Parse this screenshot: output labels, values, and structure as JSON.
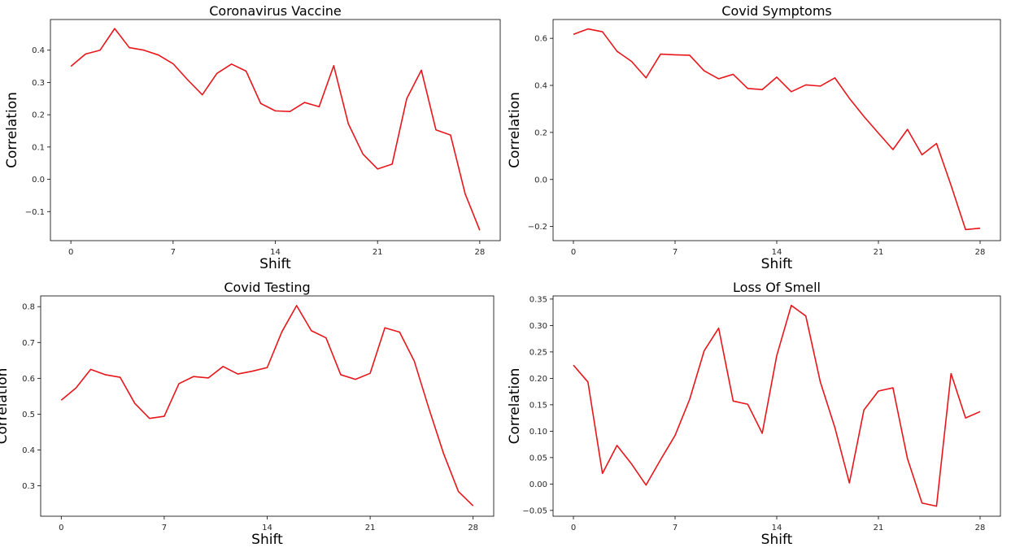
{
  "chart_data": [
    {
      "type": "line",
      "title": "Coronavirus Vaccine",
      "xlabel": "Shift",
      "ylabel": "Correlation",
      "xlim": [
        -1.4,
        29.4
      ],
      "ylim": [
        -0.19,
        0.495
      ],
      "xticks": [
        0,
        7,
        14,
        21,
        28
      ],
      "yticks": [
        -0.1,
        0.0,
        0.1,
        0.2,
        0.3,
        0.4
      ],
      "ytick_labels": [
        "−0.1",
        "0.0",
        "0.1",
        "0.2",
        "0.3",
        "0.4"
      ],
      "grid": false,
      "color": "#e8161b",
      "x": [
        0,
        1,
        2,
        3,
        4,
        5,
        6,
        7,
        8,
        9,
        10,
        11,
        12,
        13,
        14,
        15,
        16,
        17,
        18,
        19,
        20,
        21,
        22,
        23,
        24,
        25,
        26,
        27,
        28
      ],
      "values": [
        0.35,
        0.388,
        0.4,
        0.467,
        0.408,
        0.4,
        0.385,
        0.358,
        0.308,
        0.262,
        0.328,
        0.357,
        0.335,
        0.235,
        0.212,
        0.21,
        0.238,
        0.225,
        0.352,
        0.172,
        0.078,
        0.032,
        0.047,
        0.25,
        0.338,
        0.153,
        0.137,
        -0.045,
        -0.158
      ]
    },
    {
      "type": "line",
      "title": "Covid Symptoms",
      "xlabel": "Shift",
      "ylabel": "Correlation",
      "xlim": [
        -1.4,
        29.4
      ],
      "ylim": [
        -0.26,
        0.68
      ],
      "xticks": [
        0,
        7,
        14,
        21,
        28
      ],
      "yticks": [
        -0.2,
        0.0,
        0.2,
        0.4,
        0.6
      ],
      "ytick_labels": [
        "−0.2",
        "0.0",
        "0.2",
        "0.4",
        "0.6"
      ],
      "grid": false,
      "color": "#e8161b",
      "x": [
        0,
        1,
        2,
        3,
        4,
        5,
        6,
        7,
        8,
        9,
        10,
        11,
        12,
        13,
        14,
        15,
        16,
        17,
        18,
        19,
        20,
        21,
        22,
        23,
        24,
        25,
        26,
        27,
        28
      ],
      "values": [
        0.617,
        0.64,
        0.628,
        0.545,
        0.502,
        0.432,
        0.533,
        0.53,
        0.528,
        0.462,
        0.428,
        0.447,
        0.387,
        0.382,
        0.435,
        0.373,
        0.402,
        0.397,
        0.432,
        0.345,
        0.268,
        0.197,
        0.127,
        0.213,
        0.105,
        0.153,
        -0.025,
        -0.213,
        -0.207
      ]
    },
    {
      "type": "line",
      "title": "Covid Testing",
      "xlabel": "Shift",
      "ylabel": "Correlation",
      "xlim": [
        -1.4,
        29.4
      ],
      "ylim": [
        0.215,
        0.83
      ],
      "xticks": [
        0,
        7,
        14,
        21,
        28
      ],
      "yticks": [
        0.3,
        0.4,
        0.5,
        0.6,
        0.7,
        0.8
      ],
      "ytick_labels": [
        "0.3",
        "0.4",
        "0.5",
        "0.6",
        "0.7",
        "0.8"
      ],
      "grid": false,
      "color": "#e8161b",
      "x": [
        0,
        1,
        2,
        3,
        4,
        5,
        6,
        7,
        8,
        9,
        10,
        11,
        12,
        13,
        14,
        15,
        16,
        17,
        18,
        19,
        20,
        21,
        22,
        23,
        24,
        25,
        26,
        27,
        28
      ],
      "values": [
        0.539,
        0.573,
        0.625,
        0.61,
        0.603,
        0.53,
        0.488,
        0.494,
        0.585,
        0.605,
        0.601,
        0.633,
        0.612,
        0.62,
        0.63,
        0.73,
        0.803,
        0.733,
        0.713,
        0.61,
        0.597,
        0.614,
        0.741,
        0.729,
        0.648,
        0.515,
        0.389,
        0.284,
        0.244
      ]
    },
    {
      "type": "line",
      "title": "Loss Of Smell",
      "xlabel": "Shift",
      "ylabel": "Correlation",
      "xlim": [
        -1.4,
        29.4
      ],
      "ylim": [
        -0.061,
        0.356
      ],
      "xticks": [
        0,
        7,
        14,
        21,
        28
      ],
      "yticks": [
        -0.05,
        0.0,
        0.05,
        0.1,
        0.15,
        0.2,
        0.25,
        0.3,
        0.35
      ],
      "ytick_labels": [
        "−0.05",
        "0.00",
        "0.05",
        "0.10",
        "0.15",
        "0.20",
        "0.25",
        "0.30",
        "0.35"
      ],
      "grid": false,
      "color": "#e8161b",
      "x": [
        0,
        1,
        2,
        3,
        4,
        5,
        6,
        7,
        8,
        9,
        10,
        11,
        12,
        13,
        14,
        15,
        16,
        17,
        18,
        19,
        20,
        21,
        22,
        23,
        24,
        25,
        26,
        27,
        28
      ],
      "values": [
        0.225,
        0.193,
        0.02,
        0.073,
        0.038,
        -0.002,
        0.046,
        0.092,
        0.16,
        0.252,
        0.295,
        0.157,
        0.151,
        0.096,
        0.243,
        0.338,
        0.318,
        0.193,
        0.107,
        0.002,
        0.14,
        0.176,
        0.182,
        0.048,
        -0.036,
        -0.042,
        0.209,
        0.125,
        0.137
      ]
    }
  ]
}
